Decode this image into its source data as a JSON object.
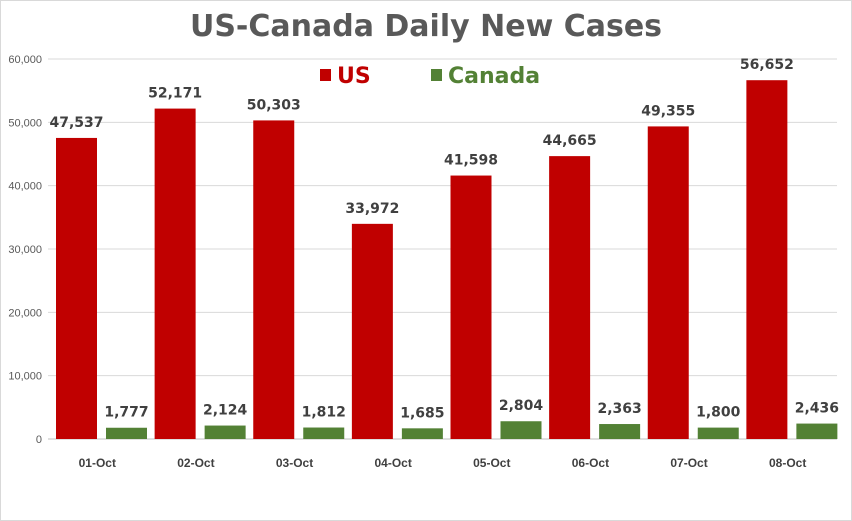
{
  "chart_data": {
    "type": "bar",
    "title": "US-Canada Daily New Cases",
    "xlabel": "",
    "ylabel": "",
    "ylim": [
      0,
      60000
    ],
    "yticks": [
      0,
      10000,
      20000,
      30000,
      40000,
      50000,
      60000
    ],
    "ytick_labels": [
      "0",
      "10,000",
      "20,000",
      "30,000",
      "40,000",
      "50,000",
      "60,000"
    ],
    "grid": true,
    "legend_position": "top-center",
    "categories": [
      "01-Oct",
      "02-Oct",
      "03-Oct",
      "04-Oct",
      "05-Oct",
      "06-Oct",
      "07-Oct",
      "08-Oct"
    ],
    "series": [
      {
        "name": "US",
        "color": "#c00000",
        "values": [
          47537,
          52171,
          50303,
          33972,
          41598,
          44665,
          49355,
          56652
        ],
        "labels": [
          "47,537",
          "52,171",
          "50,303",
          "33,972",
          "41,598",
          "44,665",
          "49,355",
          "56,652"
        ]
      },
      {
        "name": "Canada",
        "color": "#538135",
        "values": [
          1777,
          2124,
          1812,
          1685,
          2804,
          2363,
          1800,
          2436
        ],
        "labels": [
          "1,777",
          "2,124",
          "1,812",
          "1,685",
          "2,804",
          "2,363",
          "1,800",
          "2,436"
        ]
      }
    ]
  },
  "colors": {
    "title": "#595959",
    "gridline": "#d9d9d9",
    "axis_text": "#595959"
  }
}
